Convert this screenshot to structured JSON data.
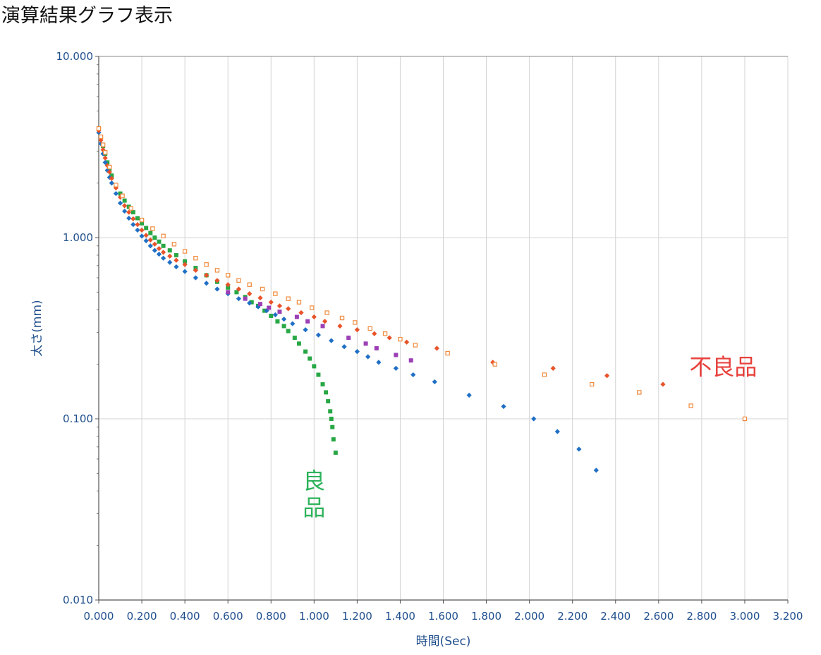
{
  "page": {
    "title": "演算結果グラフ表示"
  },
  "chart_data": {
    "type": "scatter",
    "xlabel": "時間(Sec)",
    "ylabel": "太さ(mm)",
    "xlim": [
      0,
      3.2
    ],
    "ylim": [
      0.01,
      10
    ],
    "y_scale": "log",
    "grid": true,
    "x_ticks": [
      "0.000",
      "0.200",
      "0.400",
      "0.600",
      "0.800",
      "1.000",
      "1.200",
      "1.400",
      "1.600",
      "1.800",
      "2.000",
      "2.200",
      "2.400",
      "2.600",
      "2.800",
      "3.000",
      "3.200"
    ],
    "y_ticks": [
      "0.010",
      "0.100",
      "1.000",
      "10.000"
    ],
    "annotations": [
      {
        "text": "良品",
        "x": 1.0,
        "y": 0.035,
        "color": "#2eb35c",
        "vertical": true
      },
      {
        "text": "不良品",
        "x": 2.9,
        "y": 0.175,
        "color": "#e8413c",
        "vertical": false
      }
    ],
    "series": [
      {
        "color": "#28a745",
        "marker": "square",
        "x": [
          0.0,
          0.01,
          0.02,
          0.03,
          0.04,
          0.05,
          0.06,
          0.08,
          0.1,
          0.12,
          0.14,
          0.16,
          0.18,
          0.2,
          0.22,
          0.24,
          0.26,
          0.28,
          0.3,
          0.33,
          0.36,
          0.4,
          0.45,
          0.5,
          0.55,
          0.6,
          0.64,
          0.68,
          0.71,
          0.74,
          0.77,
          0.8,
          0.83,
          0.86,
          0.88,
          0.91,
          0.93,
          0.96,
          0.98,
          1.0,
          1.02,
          1.04,
          1.055,
          1.065,
          1.075,
          1.08,
          1.085,
          1.09,
          1.1
        ],
        "y": [
          4.0,
          3.6,
          3.2,
          2.9,
          2.6,
          2.4,
          2.2,
          1.95,
          1.75,
          1.6,
          1.48,
          1.38,
          1.28,
          1.2,
          1.13,
          1.06,
          1.0,
          0.95,
          0.9,
          0.85,
          0.8,
          0.74,
          0.68,
          0.62,
          0.57,
          0.53,
          0.5,
          0.47,
          0.44,
          0.42,
          0.395,
          0.37,
          0.345,
          0.325,
          0.305,
          0.28,
          0.26,
          0.235,
          0.215,
          0.195,
          0.175,
          0.155,
          0.14,
          0.125,
          0.11,
          0.1,
          0.09,
          0.077,
          0.065
        ]
      },
      {
        "color": "#1f6fc5",
        "marker": "diamond",
        "x": [
          0.0,
          0.01,
          0.02,
          0.03,
          0.04,
          0.05,
          0.06,
          0.08,
          0.1,
          0.12,
          0.14,
          0.16,
          0.18,
          0.2,
          0.22,
          0.24,
          0.26,
          0.28,
          0.3,
          0.33,
          0.36,
          0.4,
          0.45,
          0.5,
          0.55,
          0.6,
          0.65,
          0.7,
          0.74,
          0.78,
          0.82,
          0.86,
          0.9,
          0.96,
          1.02,
          1.08,
          1.14,
          1.2,
          1.25,
          1.3,
          1.38,
          1.46,
          1.56,
          1.72,
          1.88,
          2.02,
          2.13,
          2.23,
          2.31
        ],
        "y": [
          3.8,
          3.3,
          2.9,
          2.6,
          2.35,
          2.15,
          2.0,
          1.75,
          1.55,
          1.4,
          1.28,
          1.18,
          1.1,
          1.02,
          0.96,
          0.9,
          0.85,
          0.81,
          0.77,
          0.73,
          0.69,
          0.65,
          0.6,
          0.56,
          0.52,
          0.49,
          0.46,
          0.435,
          0.415,
          0.395,
          0.375,
          0.355,
          0.335,
          0.31,
          0.29,
          0.27,
          0.25,
          0.235,
          0.22,
          0.205,
          0.19,
          0.175,
          0.16,
          0.135,
          0.117,
          0.1,
          0.085,
          0.068,
          0.052
        ]
      },
      {
        "color": "#e8532a",
        "marker": "diamond",
        "x": [
          0.0,
          0.01,
          0.02,
          0.03,
          0.04,
          0.05,
          0.06,
          0.08,
          0.1,
          0.12,
          0.14,
          0.16,
          0.18,
          0.2,
          0.22,
          0.24,
          0.26,
          0.28,
          0.3,
          0.33,
          0.36,
          0.4,
          0.45,
          0.5,
          0.55,
          0.6,
          0.65,
          0.7,
          0.75,
          0.8,
          0.84,
          0.88,
          0.94,
          1.0,
          1.05,
          1.12,
          1.2,
          1.28,
          1.35,
          1.43,
          1.57,
          1.83,
          2.11,
          2.36,
          2.62
        ],
        "y": [
          3.9,
          3.45,
          3.05,
          2.75,
          2.5,
          2.3,
          2.12,
          1.88,
          1.67,
          1.5,
          1.38,
          1.27,
          1.18,
          1.1,
          1.03,
          0.97,
          0.92,
          0.87,
          0.83,
          0.79,
          0.75,
          0.71,
          0.66,
          0.62,
          0.58,
          0.55,
          0.52,
          0.49,
          0.465,
          0.44,
          0.42,
          0.405,
          0.385,
          0.365,
          0.345,
          0.325,
          0.31,
          0.295,
          0.28,
          0.265,
          0.245,
          0.205,
          0.19,
          0.173,
          0.155
        ]
      },
      {
        "color": "#9b3fb5",
        "marker": "square",
        "x": [
          0.6,
          0.68,
          0.75,
          0.79,
          0.84,
          0.92,
          0.97,
          1.04,
          1.16,
          1.24,
          1.29,
          1.38,
          1.45
        ],
        "y": [
          0.5,
          0.46,
          0.43,
          0.41,
          0.39,
          0.365,
          0.345,
          0.325,
          0.28,
          0.26,
          0.245,
          0.225,
          0.21
        ]
      },
      {
        "color": "#f08a3c",
        "marker": "open-square",
        "x": [
          0.0,
          0.01,
          0.02,
          0.03,
          0.05,
          0.08,
          0.11,
          0.15,
          0.2,
          0.25,
          0.3,
          0.35,
          0.4,
          0.45,
          0.5,
          0.55,
          0.6,
          0.65,
          0.7,
          0.76,
          0.82,
          0.88,
          0.93,
          0.99,
          1.06,
          1.13,
          1.19,
          1.26,
          1.33,
          1.4,
          1.47,
          1.62,
          1.84,
          2.07,
          2.29,
          2.51,
          2.75,
          3.0
        ],
        "y": [
          4.0,
          3.6,
          3.25,
          2.95,
          2.45,
          1.95,
          1.7,
          1.45,
          1.25,
          1.12,
          1.02,
          0.92,
          0.84,
          0.77,
          0.71,
          0.66,
          0.62,
          0.58,
          0.55,
          0.52,
          0.49,
          0.46,
          0.44,
          0.41,
          0.385,
          0.36,
          0.34,
          0.315,
          0.295,
          0.275,
          0.255,
          0.23,
          0.2,
          0.175,
          0.155,
          0.14,
          0.118,
          0.1
        ]
      }
    ]
  }
}
